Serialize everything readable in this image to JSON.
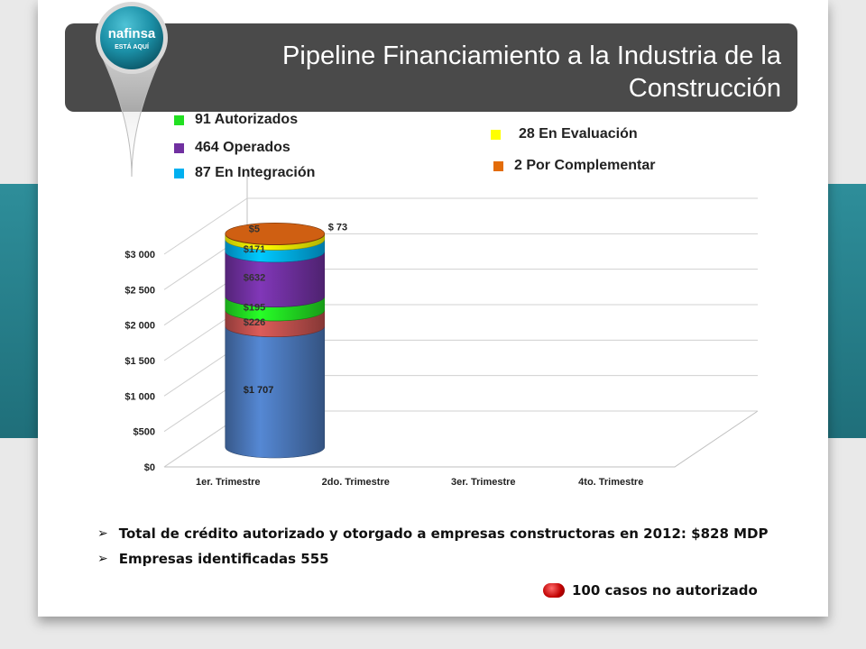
{
  "header": {
    "title": "Pipeline Financiamiento a la Industria de la Construcción",
    "logo_text_top": "nafinsa",
    "logo_text_bottom": "ESTÁ AQUÍ"
  },
  "legend": {
    "items": [
      {
        "label": "91  Autorizados",
        "color": "#22e022"
      },
      {
        "label": "464 Operados",
        "color": "#7030a0"
      },
      {
        "label": "87 En Integración",
        "color": "#00b0f0"
      },
      {
        "label": "28 En Evaluación",
        "color": "#ffff00"
      },
      {
        "label": "2 Por Complementar",
        "color": "#e36c09"
      }
    ]
  },
  "chart_data": {
    "type": "bar",
    "stacked": true,
    "three_d": true,
    "categories": [
      "1er. Trimestre",
      "2do. Trimestre",
      "3er. Trimestre",
      "4to. Trimestre"
    ],
    "y_ticks": [
      "$0",
      "$500",
      "$1 000",
      "$1 500",
      "$2 000",
      "$2 500",
      "$3 000"
    ],
    "ylim": [
      0,
      3000
    ],
    "series": [
      {
        "values": [
          1707,
          null,
          null,
          null
        ],
        "color": "#4a76b8",
        "data_label": "$1 707"
      },
      {
        "values": [
          226,
          null,
          null,
          null
        ],
        "color": "#c0504d",
        "data_label": "$226"
      },
      {
        "values": [
          195,
          null,
          null,
          null
        ],
        "color": "#22e022",
        "data_label": "$195"
      },
      {
        "values": [
          632,
          null,
          null,
          null
        ],
        "color": "#7030a0",
        "data_label": "$632"
      },
      {
        "values": [
          171,
          null,
          null,
          null
        ],
        "color": "#00b0f0",
        "data_label": "$171"
      },
      {
        "values": [
          73,
          null,
          null,
          null
        ],
        "color": "#ffff00",
        "data_label": "$ 73"
      },
      {
        "values": [
          5,
          null,
          null,
          null
        ],
        "color": "#c55a11",
        "data_label": "$5"
      }
    ]
  },
  "bullets": [
    "Total de crédito autorizado y otorgado a empresas constructoras en 2012: $828 MDP",
    "Empresas identificadas 555"
  ],
  "note": {
    "label": "100 casos no autorizado",
    "color": "#c00000"
  }
}
